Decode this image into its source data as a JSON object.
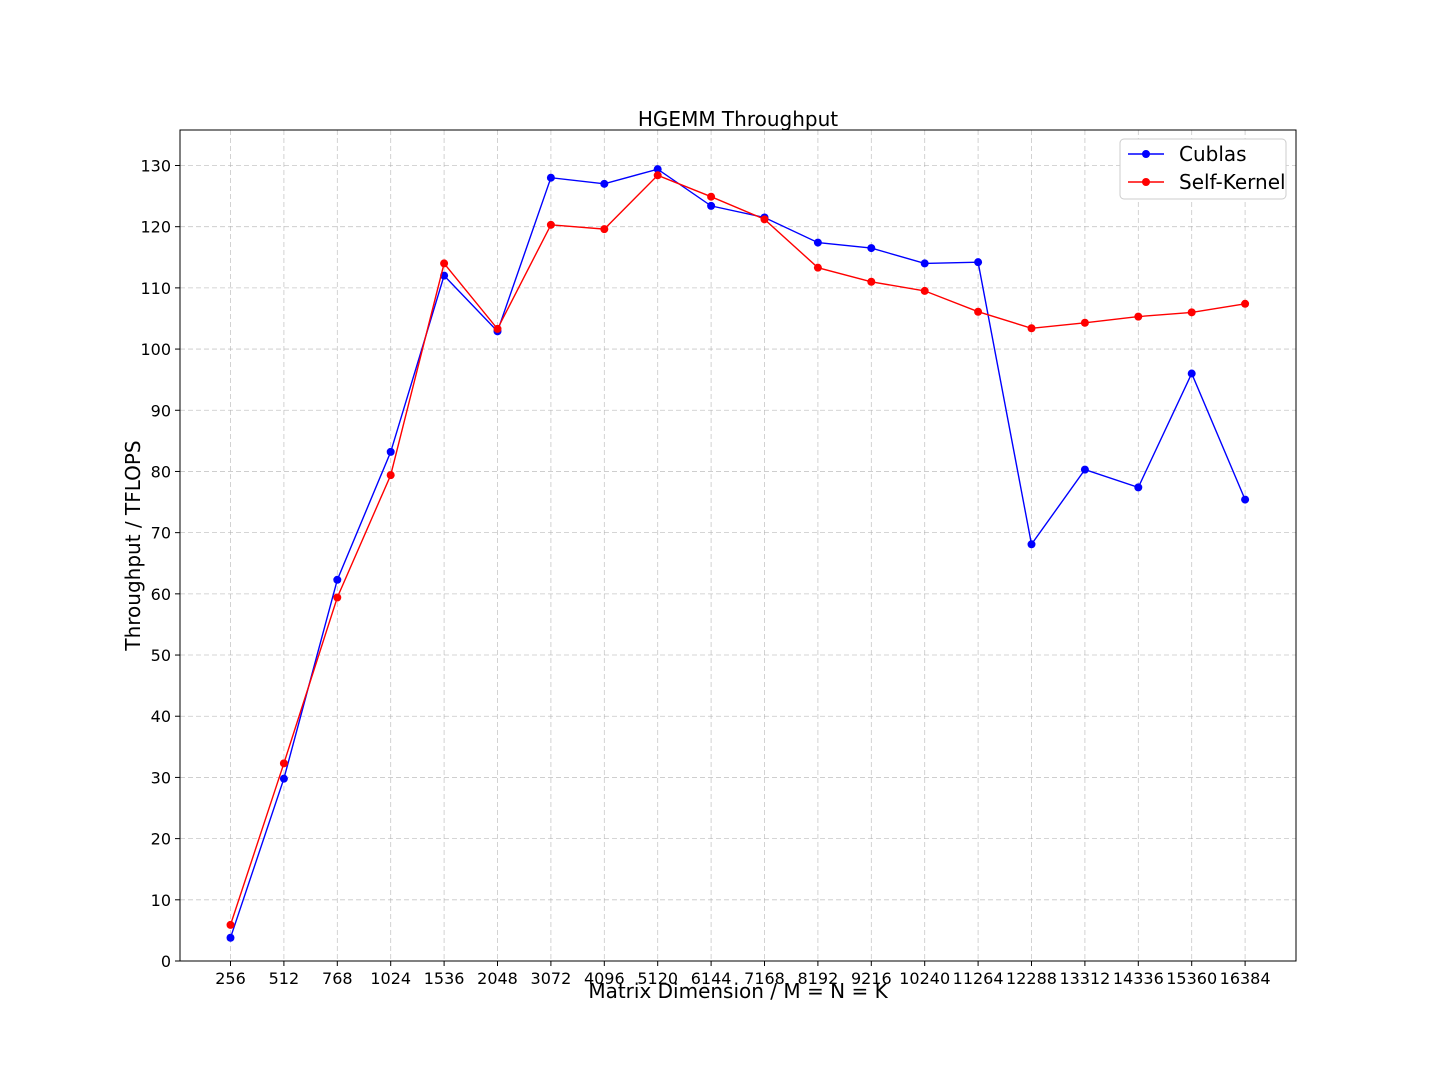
{
  "chart_data": {
    "type": "line",
    "title": "HGEMM Throughput",
    "xlabel": "Matrix Dimension / M = N = K",
    "ylabel": "Throughput / TFLOPS",
    "categories": [
      "256",
      "512",
      "768",
      "1024",
      "1536",
      "2048",
      "3072",
      "4096",
      "5120",
      "6144",
      "7168",
      "8192",
      "9216",
      "10240",
      "11264",
      "12288",
      "13312",
      "14336",
      "15360",
      "16384"
    ],
    "ylim": [
      0,
      135.8
    ],
    "yticks": [
      0,
      10,
      20,
      30,
      40,
      50,
      60,
      70,
      80,
      90,
      100,
      110,
      120,
      130
    ],
    "grid": true,
    "legend_position": "top-right",
    "series": [
      {
        "name": "Cublas",
        "color": "#0000ff",
        "values": [
          3.8,
          29.8,
          62.3,
          83.2,
          112.0,
          102.9,
          128.0,
          127.0,
          129.4,
          123.4,
          121.5,
          117.4,
          116.5,
          114.0,
          114.2,
          68.1,
          80.3,
          77.4,
          96.0,
          75.4
        ]
      },
      {
        "name": "Self-Kernel",
        "color": "#ff0000",
        "values": [
          5.9,
          32.3,
          59.4,
          79.4,
          114.0,
          103.3,
          120.3,
          119.6,
          128.4,
          124.9,
          121.2,
          113.3,
          111.0,
          109.5,
          106.1,
          103.4,
          104.3,
          105.3,
          106.0,
          107.4
        ]
      }
    ]
  }
}
